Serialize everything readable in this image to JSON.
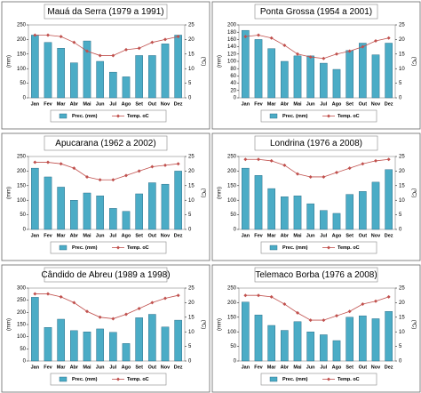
{
  "chart_data": [
    {
      "type": "bar",
      "title": "Mauá da Serra (1979 a 1991)",
      "categories": [
        "Jan",
        "Fev",
        "Mar",
        "Abr",
        "Mai",
        "Jun",
        "Jul",
        "Ago",
        "Set",
        "Out",
        "Nov",
        "Dez"
      ],
      "series": [
        {
          "name": "Prec. (mm)",
          "color": "#4bacc6",
          "values": [
            215,
            190,
            170,
            120,
            195,
            125,
            88,
            72,
            145,
            145,
            185,
            215
          ]
        },
        {
          "name": "Temp. oC",
          "color": "#c0504d",
          "type": "line",
          "axis": "y2",
          "values": [
            21.5,
            21.5,
            21,
            19,
            16,
            14.5,
            14.5,
            16.5,
            17,
            19,
            20,
            21
          ]
        }
      ],
      "ylabel": "(mm)",
      "y2label": "(ºC)",
      "ylim": [
        0,
        250
      ],
      "yticks": [
        0,
        50,
        100,
        150,
        200,
        250
      ],
      "y2lim": [
        0,
        25
      ],
      "y2ticks": [
        0,
        5,
        10,
        15,
        20,
        25
      ]
    },
    {
      "type": "bar",
      "title": "Ponta Grossa (1954 a 2001)",
      "categories": [
        "Jan",
        "Fev",
        "Mar",
        "Abr",
        "Mai",
        "Jun",
        "Jul",
        "Ago",
        "Set",
        "Out",
        "Nov",
        "Dez"
      ],
      "series": [
        {
          "name": "Prec. (mm)",
          "color": "#4bacc6",
          "values": [
            185,
            160,
            135,
            100,
            115,
            115,
            95,
            78,
            130,
            150,
            118,
            150
          ]
        },
        {
          "name": "Temp. oC",
          "color": "#c0504d",
          "type": "line",
          "axis": "y2",
          "values": [
            21,
            21.5,
            20.5,
            18,
            15,
            14,
            13.5,
            15,
            16,
            17.5,
            19.5,
            20.5
          ]
        }
      ],
      "ylabel": "(mm)",
      "y2label": "(ºC)",
      "ylim": [
        0,
        200
      ],
      "yticks": [
        0,
        20,
        40,
        60,
        80,
        100,
        120,
        140,
        160,
        180,
        200
      ],
      "y2lim": [
        0,
        25
      ],
      "y2ticks": [
        0,
        5,
        10,
        15,
        20,
        25
      ]
    },
    {
      "type": "bar",
      "title": "Apucarana (1962 a 2002)",
      "categories": [
        "Jan",
        "Fev",
        "Mar",
        "Abr",
        "Mai",
        "Jun",
        "Jul",
        "Ago",
        "Set",
        "Out",
        "Nov",
        "Dez"
      ],
      "series": [
        {
          "name": "Prec. (mm)",
          "color": "#4bacc6",
          "values": [
            210,
            180,
            145,
            100,
            125,
            115,
            72,
            62,
            122,
            160,
            155,
            200
          ]
        },
        {
          "name": "Temp. oC",
          "color": "#c0504d",
          "type": "line",
          "axis": "y2",
          "values": [
            23,
            23,
            22.5,
            21,
            18,
            17,
            17,
            18.5,
            20,
            21.5,
            22,
            22.5
          ]
        }
      ],
      "ylabel": "(mm)",
      "y2label": "(ºC)",
      "ylim": [
        0,
        250
      ],
      "yticks": [
        0,
        50,
        100,
        150,
        200,
        250
      ],
      "y2lim": [
        0,
        25
      ],
      "y2ticks": [
        0,
        5,
        10,
        15,
        20,
        25
      ]
    },
    {
      "type": "bar",
      "title": "Londrina (1976 a 2008)",
      "categories": [
        "Jan",
        "Fev",
        "Mar",
        "Abr",
        "Mai",
        "Jun",
        "Jul",
        "Ago",
        "Set",
        "Out",
        "Nov",
        "Dez"
      ],
      "series": [
        {
          "name": "Prec. (mm)",
          "color": "#4bacc6",
          "values": [
            210,
            185,
            140,
            112,
            115,
            88,
            65,
            55,
            120,
            130,
            162,
            205
          ]
        },
        {
          "name": "Temp. oC",
          "color": "#c0504d",
          "type": "line",
          "axis": "y2",
          "values": [
            24,
            24,
            23.5,
            22,
            19,
            18,
            18,
            19.5,
            21,
            22.5,
            23.5,
            24
          ]
        }
      ],
      "ylabel": "(mm)",
      "y2label": "(ºC)",
      "ylim": [
        0,
        250
      ],
      "yticks": [
        0,
        50,
        100,
        150,
        200,
        250
      ],
      "y2lim": [
        0,
        25
      ],
      "y2ticks": [
        0,
        5,
        10,
        15,
        20,
        25
      ]
    },
    {
      "type": "bar",
      "title": "Cândido de Abreu (1989 a 1998)",
      "categories": [
        "Jan",
        "Fev",
        "Mar",
        "Abr",
        "Mai",
        "Jun",
        "Jul",
        "Ago",
        "Set",
        "Out",
        "Nov",
        "Dez"
      ],
      "series": [
        {
          "name": "Prec. (mm)",
          "color": "#4bacc6",
          "values": [
            262,
            138,
            172,
            125,
            120,
            132,
            118,
            72,
            178,
            192,
            140,
            168
          ]
        },
        {
          "name": "Temp. oC",
          "color": "#c0504d",
          "type": "line",
          "axis": "y2",
          "values": [
            23,
            23,
            22,
            20,
            17,
            15,
            14.5,
            16,
            18,
            20,
            21.5,
            22.5
          ]
        }
      ],
      "ylabel": "(mm)",
      "y2label": "(ºC)",
      "ylim": [
        0,
        300
      ],
      "yticks": [
        0,
        50,
        100,
        150,
        200,
        250,
        300
      ],
      "y2lim": [
        0,
        25
      ],
      "y2ticks": [
        0,
        5,
        10,
        15,
        20,
        25
      ]
    },
    {
      "type": "bar",
      "title": "Telemaco Borba (1976 a 2008)",
      "categories": [
        "Jan",
        "Fev",
        "Mar",
        "Abr",
        "Mai",
        "Jun",
        "Jul",
        "Ago",
        "Set",
        "Out",
        "Nov",
        "Dez"
      ],
      "series": [
        {
          "name": "Prec. (mm)",
          "color": "#4bacc6",
          "values": [
            202,
            158,
            122,
            105,
            135,
            100,
            90,
            70,
            150,
            155,
            145,
            170
          ]
        },
        {
          "name": "Temp. oC",
          "color": "#c0504d",
          "type": "line",
          "axis": "y2",
          "values": [
            22.5,
            22.5,
            22,
            19.5,
            16.5,
            14,
            14,
            15.5,
            17,
            19.5,
            20.5,
            22
          ]
        }
      ],
      "ylabel": "(mm)",
      "y2label": "(ºC)",
      "ylim": [
        0,
        250
      ],
      "yticks": [
        0,
        50,
        100,
        150,
        200,
        250
      ],
      "y2lim": [
        0,
        25
      ],
      "y2ticks": [
        0,
        5,
        10,
        15,
        20,
        25
      ]
    }
  ]
}
